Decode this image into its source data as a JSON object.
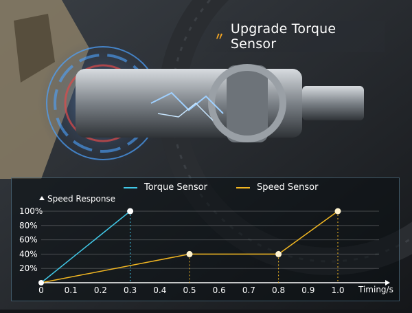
{
  "headline": {
    "icon": "torque-chevron-icon",
    "text": "Upgrade Torque Sensor"
  },
  "chart_data": {
    "type": "line",
    "ylabel": "Speed Response",
    "xlabel": "Timing/s",
    "x_ticks": [
      "0",
      "0.1",
      "0.2",
      "0.3",
      "0.4",
      "0.5",
      "0.6",
      "0.7",
      "0.8",
      "0.9",
      "1.0"
    ],
    "y_ticks": [
      "20%",
      "40%",
      "60%",
      "80%",
      "100%"
    ],
    "xlim": [
      0,
      1.0
    ],
    "ylim": [
      0,
      100
    ],
    "grid": "horizontal",
    "legend_position": "top",
    "series": [
      {
        "name": "Torque Sensor",
        "color": "#41c9e8",
        "points": [
          [
            0,
            0
          ],
          [
            0.3,
            100
          ]
        ]
      },
      {
        "name": "Speed Sensor",
        "color": "#f2b722",
        "points": [
          [
            0,
            0
          ],
          [
            0.5,
            40
          ],
          [
            0.8,
            40
          ],
          [
            1.0,
            100
          ]
        ]
      }
    ]
  }
}
